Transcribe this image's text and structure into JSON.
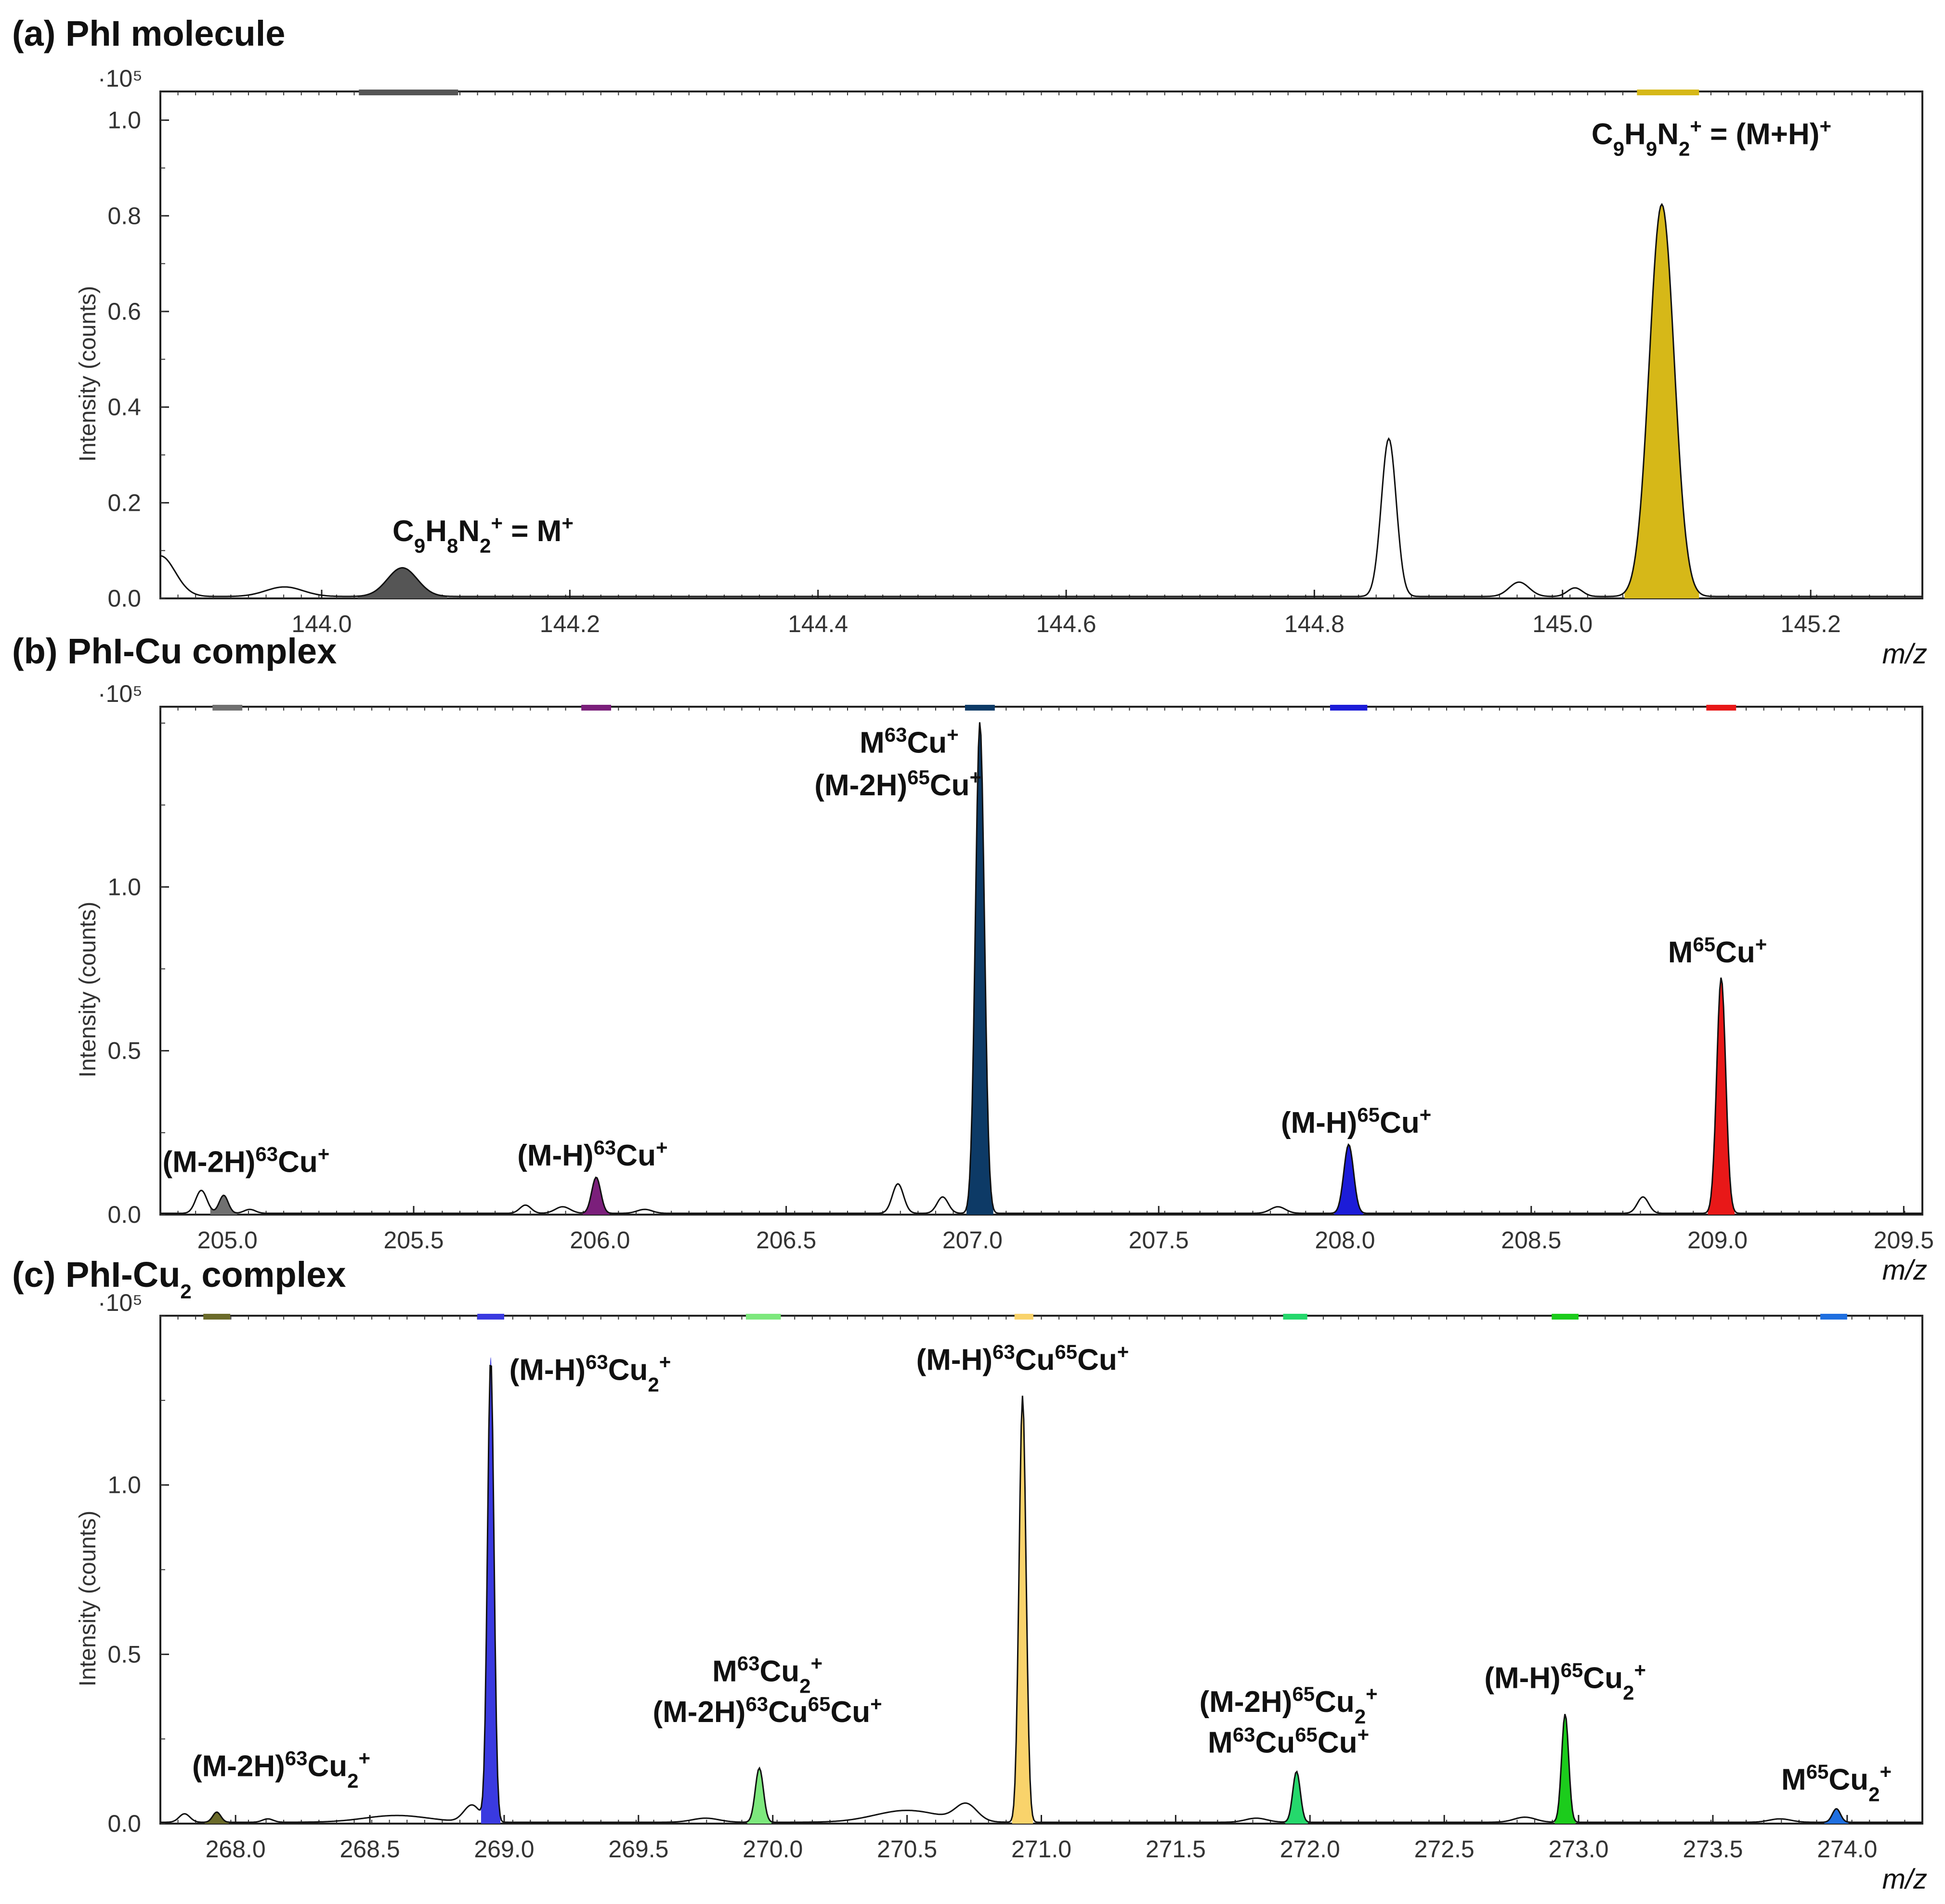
{
  "chart_data": [
    {
      "type": "line",
      "title": "(a) PhI molecule",
      "xlabel": "m/z",
      "ylabel": "Intensity (counts)",
      "y_multiplier": "·10⁵",
      "xlim": [
        143.87,
        145.29
      ],
      "ylim": [
        0,
        1.06
      ],
      "xticks": [
        144.0,
        144.2,
        144.4,
        144.6,
        144.8,
        145.0,
        145.2
      ],
      "yticks": [
        0.0,
        0.2,
        0.4,
        0.6,
        0.8,
        1.0
      ],
      "xtick_labels": [
        "144.0",
        "144.2",
        "144.4",
        "144.6",
        "144.8",
        "145.0",
        "145.2"
      ],
      "ytick_labels": [
        "0.0",
        "0.2",
        "0.4",
        "0.6",
        "0.8",
        "1.0"
      ],
      "peaks": [
        {
          "mz": 143.87,
          "height": 0.085,
          "width": 0.012,
          "filled": false
        },
        {
          "mz": 143.97,
          "height": 0.02,
          "width": 0.015,
          "filled": false
        },
        {
          "mz": 144.065,
          "height": 0.06,
          "width": 0.012,
          "filled": true,
          "color": "#555555",
          "bar": [
            144.03,
            144.11
          ],
          "label": "C9H8N2+ = M+"
        },
        {
          "mz": 144.86,
          "height": 0.33,
          "width": 0.006,
          "filled": false
        },
        {
          "mz": 144.965,
          "height": 0.03,
          "width": 0.008,
          "filled": false
        },
        {
          "mz": 145.01,
          "height": 0.018,
          "width": 0.006,
          "filled": false
        },
        {
          "mz": 145.08,
          "height": 0.82,
          "width": 0.01,
          "filled": true,
          "color": "#d6b818",
          "bar": [
            145.06,
            145.11
          ],
          "label": "C9H9N2+ = (M+H)+"
        }
      ],
      "annotations": [
        {
          "text": "C9H8N2+ = M+",
          "parts": [
            [
              "C",
              ""
            ],
            [
              "9",
              "sub"
            ],
            [
              "H",
              ""
            ],
            [
              "8",
              "sub"
            ],
            [
              "N",
              ""
            ],
            [
              "2",
              "sub"
            ],
            [
              "+",
              "sup"
            ],
            [
              " = M",
              ""
            ],
            [
              "+",
              "sup"
            ]
          ],
          "x": 144.13,
          "y": 0.12
        },
        {
          "text": "C9H9N2+ = (M+H)+",
          "parts": [
            [
              "C",
              ""
            ],
            [
              "9",
              "sub"
            ],
            [
              "H",
              ""
            ],
            [
              "9",
              "sub"
            ],
            [
              "N",
              ""
            ],
            [
              "2",
              "sub"
            ],
            [
              "+",
              "sup"
            ],
            [
              " = (M+H)",
              ""
            ],
            [
              "+",
              "sup"
            ]
          ],
          "x": 145.12,
          "y": 0.95
        }
      ]
    },
    {
      "type": "line",
      "title": "(b) PhI-Cu complex",
      "xlabel": "m/z",
      "ylabel": "Intensity (counts)",
      "y_multiplier": "·10⁵",
      "xlim": [
        204.82,
        209.55
      ],
      "ylim": [
        0,
        1.55
      ],
      "xticks": [
        205.0,
        205.5,
        206.0,
        206.5,
        207.0,
        207.5,
        208.0,
        208.5,
        209.0,
        209.5
      ],
      "yticks": [
        0.0,
        0.5,
        1.0
      ],
      "xtick_labels": [
        "205.0",
        "205.5",
        "206.0",
        "206.5",
        "207.0",
        "207.5",
        "208.0",
        "208.5",
        "209.0",
        "209.5"
      ],
      "ytick_labels": [
        "0.0",
        "0.5",
        "1.0"
      ],
      "peaks": [
        {
          "mz": 204.93,
          "height": 0.07,
          "width": 0.015,
          "filled": false
        },
        {
          "mz": 204.99,
          "height": 0.055,
          "width": 0.012,
          "filled": true,
          "color": "#707070",
          "bar": [
            204.96,
            205.04
          ]
        },
        {
          "mz": 205.06,
          "height": 0.012,
          "width": 0.015,
          "filled": false
        },
        {
          "mz": 205.8,
          "height": 0.025,
          "width": 0.015,
          "filled": false
        },
        {
          "mz": 205.9,
          "height": 0.02,
          "width": 0.02,
          "filled": false
        },
        {
          "mz": 205.99,
          "height": 0.11,
          "width": 0.012,
          "filled": true,
          "color": "#7b1f7b",
          "bar": [
            205.95,
            206.03
          ]
        },
        {
          "mz": 206.12,
          "height": 0.012,
          "width": 0.02,
          "filled": false
        },
        {
          "mz": 206.8,
          "height": 0.09,
          "width": 0.015,
          "filled": false
        },
        {
          "mz": 206.92,
          "height": 0.05,
          "width": 0.015,
          "filled": false
        },
        {
          "mz": 207.02,
          "height": 1.5,
          "width": 0.012,
          "filled": true,
          "color": "#0d3a66",
          "bar": [
            206.98,
            207.06
          ]
        },
        {
          "mz": 207.82,
          "height": 0.02,
          "width": 0.02,
          "filled": false
        },
        {
          "mz": 208.01,
          "height": 0.21,
          "width": 0.013,
          "filled": true,
          "color": "#1c1cd8",
          "bar": [
            207.96,
            208.06
          ]
        },
        {
          "mz": 208.8,
          "height": 0.05,
          "width": 0.015,
          "filled": false
        },
        {
          "mz": 209.01,
          "height": 0.72,
          "width": 0.012,
          "filled": true,
          "color": "#e81818",
          "bar": [
            208.97,
            209.05
          ]
        }
      ],
      "annotations": [
        {
          "text": "(M-2H)63Cu+",
          "parts": [
            [
              "(M-2H)",
              ""
            ],
            [
              "63",
              "sup"
            ],
            [
              "Cu",
              ""
            ],
            [
              "+",
              "sup"
            ]
          ],
          "x": 205.05,
          "y": 0.13
        },
        {
          "text": "(M-H)63Cu+",
          "parts": [
            [
              "(M-H)",
              ""
            ],
            [
              "63",
              "sup"
            ],
            [
              "Cu",
              ""
            ],
            [
              "+",
              "sup"
            ]
          ],
          "x": 205.98,
          "y": 0.15
        },
        {
          "text": "M63Cu+",
          "parts": [
            [
              "M",
              ""
            ],
            [
              "63",
              "sup"
            ],
            [
              "Cu",
              ""
            ],
            [
              "+",
              "sup"
            ]
          ],
          "x": 206.83,
          "y": 1.41
        },
        {
          "text": "(M-2H)65Cu+",
          "parts": [
            [
              "(M-2H)",
              ""
            ],
            [
              "65",
              "sup"
            ],
            [
              "Cu",
              ""
            ],
            [
              "+",
              "sup"
            ]
          ],
          "x": 206.8,
          "y": 1.28
        },
        {
          "text": "(M-H)65Cu+",
          "parts": [
            [
              "(M-H)",
              ""
            ],
            [
              "65",
              "sup"
            ],
            [
              "Cu",
              ""
            ],
            [
              "+",
              "sup"
            ]
          ],
          "x": 208.03,
          "y": 0.25
        },
        {
          "text": "M65Cu+",
          "parts": [
            [
              "M",
              ""
            ],
            [
              "65",
              "sup"
            ],
            [
              "Cu",
              ""
            ],
            [
              "+",
              "sup"
            ]
          ],
          "x": 209.0,
          "y": 0.77
        }
      ]
    },
    {
      "type": "line",
      "title": "(c) PhI-Cu2 complex",
      "title_parts": [
        [
          "(c) PhI-Cu",
          ""
        ],
        [
          "2",
          "sub"
        ],
        [
          " complex",
          ""
        ]
      ],
      "xlabel": "m/z",
      "ylabel": "Intensity (counts)",
      "y_multiplier": "·10⁵",
      "xlim": [
        267.72,
        274.28
      ],
      "ylim": [
        0,
        1.5
      ],
      "xticks": [
        268.0,
        268.5,
        269.0,
        269.5,
        270.0,
        270.5,
        271.0,
        271.5,
        272.0,
        272.5,
        273.0,
        273.5,
        274.0
      ],
      "yticks": [
        0.0,
        0.5,
        1.0
      ],
      "xtick_labels": [
        "268.0",
        "268.5",
        "269.0",
        "269.5",
        "270.0",
        "270.5",
        "271.0",
        "271.5",
        "272.0",
        "272.5",
        "273.0",
        "273.5",
        "274.0"
      ],
      "ytick_labels": [
        "0.0",
        "0.5",
        "1.0"
      ],
      "peaks": [
        {
          "mz": 267.81,
          "height": 0.025,
          "width": 0.02,
          "filled": false
        },
        {
          "mz": 267.93,
          "height": 0.03,
          "width": 0.015,
          "filled": true,
          "color": "#6b6b2a",
          "bar": [
            267.88,
            267.98
          ]
        },
        {
          "mz": 268.12,
          "height": 0.01,
          "width": 0.02,
          "filled": false
        },
        {
          "mz": 268.6,
          "height": 0.02,
          "width": 0.12,
          "filled": false
        },
        {
          "mz": 268.88,
          "height": 0.05,
          "width": 0.03,
          "filled": false
        },
        {
          "mz": 268.95,
          "height": 1.37,
          "width": 0.012,
          "filled": true,
          "color": "#3a3ae0",
          "bar": [
            268.9,
            269.0
          ]
        },
        {
          "mz": 269.75,
          "height": 0.012,
          "width": 0.05,
          "filled": false
        },
        {
          "mz": 269.95,
          "height": 0.16,
          "width": 0.015,
          "filled": true,
          "color": "#7de87d",
          "bar": [
            269.9,
            270.03
          ]
        },
        {
          "mz": 270.5,
          "height": 0.035,
          "width": 0.12,
          "filled": false
        },
        {
          "mz": 270.72,
          "height": 0.05,
          "width": 0.04,
          "filled": false
        },
        {
          "mz": 270.93,
          "height": 1.26,
          "width": 0.013,
          "filled": true,
          "color": "#f9d36b",
          "bar": [
            270.9,
            270.97
          ]
        },
        {
          "mz": 271.8,
          "height": 0.012,
          "width": 0.04,
          "filled": false
        },
        {
          "mz": 271.95,
          "height": 0.15,
          "width": 0.014,
          "filled": true,
          "color": "#25d86c",
          "bar": [
            271.9,
            271.99
          ]
        },
        {
          "mz": 272.8,
          "height": 0.015,
          "width": 0.04,
          "filled": false
        },
        {
          "mz": 272.95,
          "height": 0.32,
          "width": 0.013,
          "filled": true,
          "color": "#1ccc1c",
          "bar": [
            272.9,
            273.0
          ]
        },
        {
          "mz": 273.75,
          "height": 0.01,
          "width": 0.04,
          "filled": false
        },
        {
          "mz": 273.96,
          "height": 0.04,
          "width": 0.015,
          "filled": true,
          "color": "#1f6fe0",
          "bar": [
            273.9,
            274.0
          ]
        }
      ],
      "annotations": [
        {
          "text": "(M-H)63Cu2+",
          "parts": [
            [
              "(M-H)",
              ""
            ],
            [
              "63",
              "sup"
            ],
            [
              "Cu",
              ""
            ],
            [
              "2",
              "sub"
            ],
            [
              "+",
              "sup"
            ]
          ],
          "x": 269.32,
          "y": 1.31
        },
        {
          "text": "(M-2H)63Cu2+",
          "parts": [
            [
              "(M-2H)",
              ""
            ],
            [
              "63",
              "sup"
            ],
            [
              "Cu",
              ""
            ],
            [
              "2",
              "sub"
            ],
            [
              "+",
              "sup"
            ]
          ],
          "x": 268.17,
          "y": 0.14
        },
        {
          "text": "M63Cu2+",
          "parts": [
            [
              "M",
              ""
            ],
            [
              "63",
              "sup"
            ],
            [
              "Cu",
              ""
            ],
            [
              "2",
              "sub"
            ],
            [
              "+",
              "sup"
            ]
          ],
          "x": 269.98,
          "y": 0.42
        },
        {
          "text": "(M-2H)63Cu65Cu+",
          "parts": [
            [
              "(M-2H)",
              ""
            ],
            [
              "63",
              "sup"
            ],
            [
              "Cu",
              ""
            ],
            [
              "65",
              "sup"
            ],
            [
              "Cu",
              ""
            ],
            [
              "+",
              "sup"
            ]
          ],
          "x": 269.98,
          "y": 0.3
        },
        {
          "text": "(M-H)63Cu65Cu+",
          "parts": [
            [
              "(M-H)",
              ""
            ],
            [
              "63",
              "sup"
            ],
            [
              "Cu",
              ""
            ],
            [
              "65",
              "sup"
            ],
            [
              "Cu",
              ""
            ],
            [
              "+",
              "sup"
            ]
          ],
          "x": 270.93,
          "y": 1.34
        },
        {
          "text": "(M-2H)65Cu2+",
          "parts": [
            [
              "(M-2H)",
              ""
            ],
            [
              "65",
              "sup"
            ],
            [
              "Cu",
              ""
            ],
            [
              "2",
              "sub"
            ],
            [
              "+",
              "sup"
            ]
          ],
          "x": 271.92,
          "y": 0.33
        },
        {
          "text": "M63Cu65Cu+",
          "parts": [
            [
              "M",
              ""
            ],
            [
              "63",
              "sup"
            ],
            [
              "Cu",
              ""
            ],
            [
              "65",
              "sup"
            ],
            [
              "Cu",
              ""
            ],
            [
              "+",
              "sup"
            ]
          ],
          "x": 271.92,
          "y": 0.21
        },
        {
          "text": "(M-H)65Cu2+",
          "parts": [
            [
              "(M-H)",
              ""
            ],
            [
              "65",
              "sup"
            ],
            [
              "Cu",
              ""
            ],
            [
              "2",
              "sub"
            ],
            [
              "+",
              "sup"
            ]
          ],
          "x": 272.95,
          "y": 0.4
        },
        {
          "text": "M65Cu2+",
          "parts": [
            [
              "M",
              ""
            ],
            [
              "65",
              "sup"
            ],
            [
              "Cu",
              ""
            ],
            [
              "2",
              "sub"
            ],
            [
              "+",
              "sup"
            ]
          ],
          "x": 273.96,
          "y": 0.1
        }
      ]
    }
  ]
}
